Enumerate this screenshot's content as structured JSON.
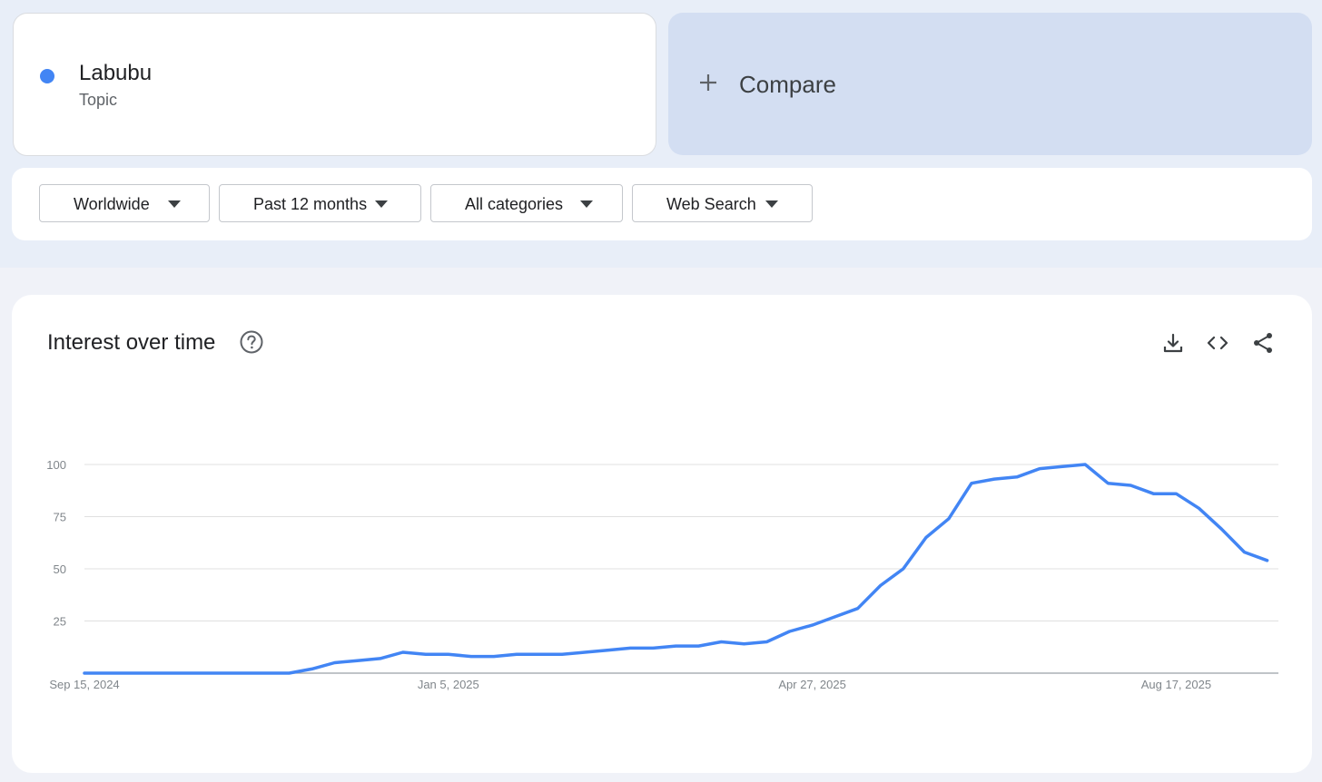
{
  "search_term": {
    "name": "Labubu",
    "type": "Topic",
    "dot_color": "#4285f4"
  },
  "compare": {
    "label": "Compare",
    "icon": "plus-icon"
  },
  "filters": [
    {
      "label": "Worldwide",
      "icon": "caret-down-icon"
    },
    {
      "label": "Past 12 months",
      "icon": "caret-down-icon"
    },
    {
      "label": "All categories",
      "icon": "caret-down-icon"
    },
    {
      "label": "Web Search",
      "icon": "caret-down-icon"
    }
  ],
  "interest_panel": {
    "title": "Interest over time",
    "help_icon": "help-circle-icon",
    "actions": [
      "download-icon",
      "embed-code-icon",
      "share-icon"
    ]
  },
  "chart_data": {
    "type": "line",
    "title": "",
    "xlabel": "",
    "ylabel": "",
    "ylim": [
      0,
      100
    ],
    "y_ticks": [
      25,
      50,
      75,
      100
    ],
    "x_tick_labels": [
      "Sep 15, 2024",
      "Jan 5, 2025",
      "Apr 27, 2025",
      "Aug 17, 2025"
    ],
    "x_tick_indices": [
      0,
      16,
      32,
      48
    ],
    "grid": true,
    "legend": "none",
    "series": [
      {
        "color": "#4285f4",
        "values": [
          0,
          0,
          0,
          0,
          0,
          0,
          0,
          0,
          0,
          0,
          2,
          5,
          6,
          7,
          10,
          9,
          9,
          8,
          8,
          9,
          9,
          9,
          10,
          11,
          12,
          12,
          13,
          13,
          15,
          14,
          15,
          20,
          23,
          27,
          31,
          42,
          50,
          65,
          74,
          91,
          93,
          94,
          98,
          99,
          100,
          91,
          90,
          86,
          86,
          79,
          69,
          58,
          54
        ]
      }
    ]
  }
}
